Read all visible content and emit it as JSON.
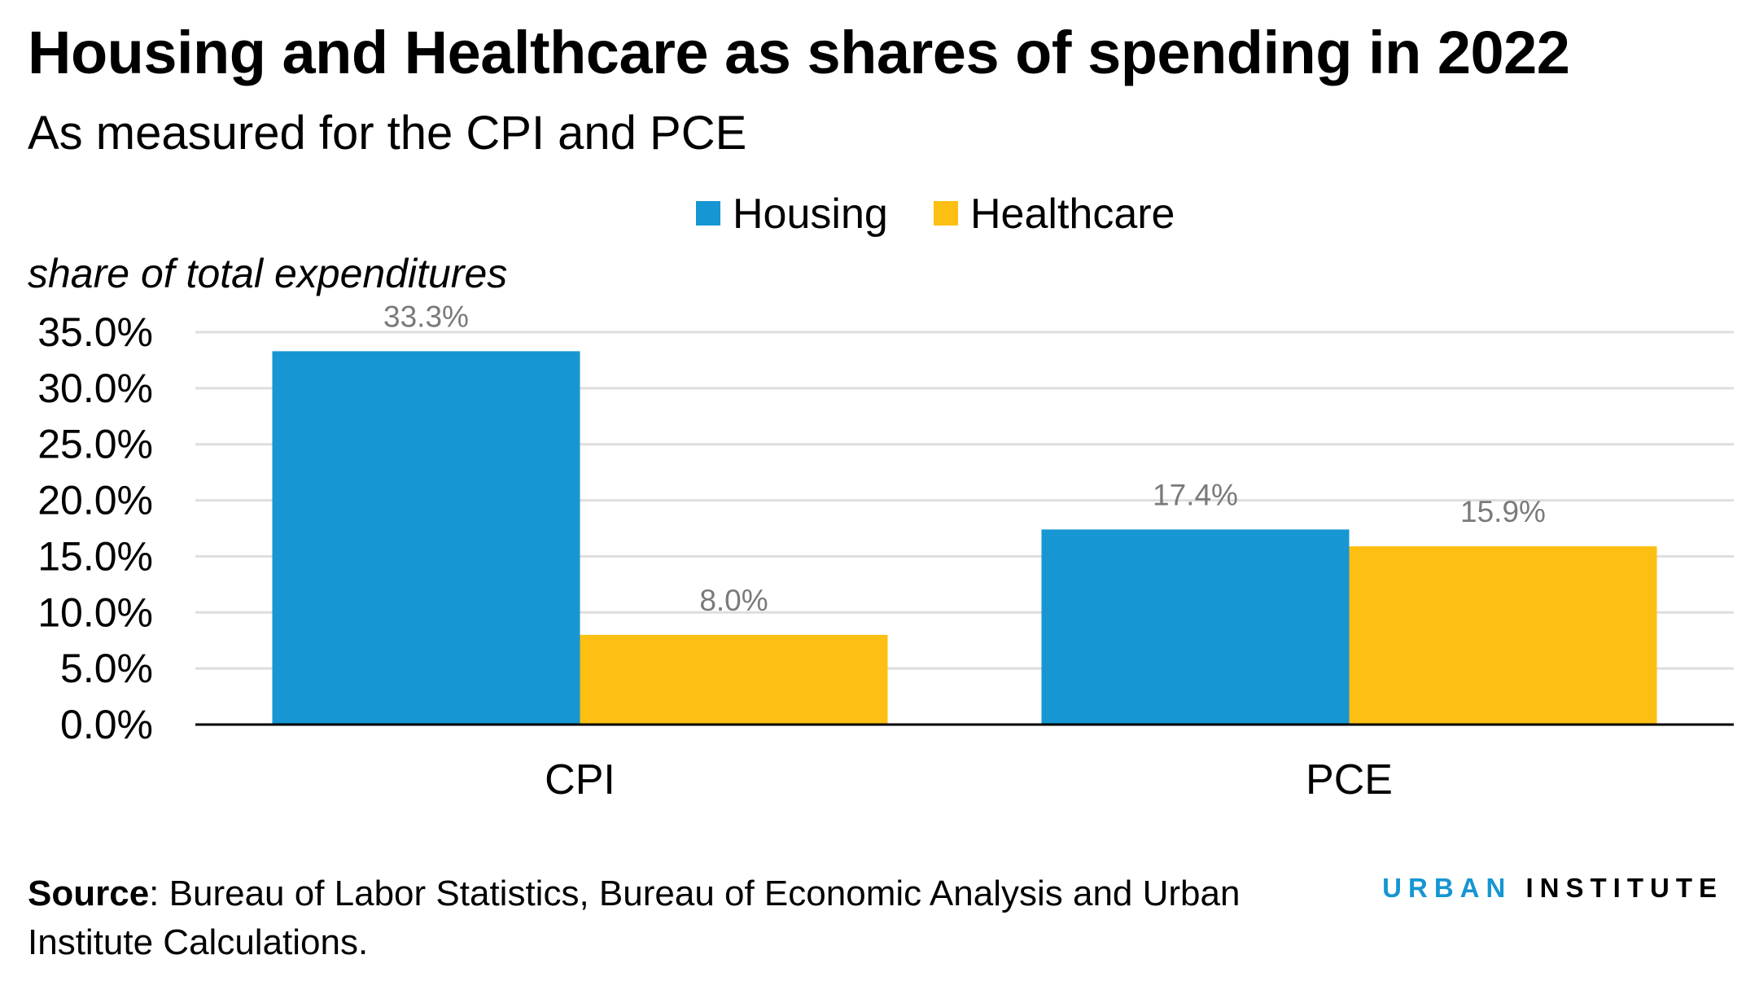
{
  "header": {
    "title": "Housing and Healthcare as shares of spending in 2022",
    "subtitle": "As measured for the CPI and PCE"
  },
  "chart_data": {
    "type": "bar",
    "categories": [
      "CPI",
      "PCE"
    ],
    "series": [
      {
        "name": "Housing",
        "color": "#1696d2",
        "values": [
          33.3,
          17.4
        ],
        "labels": [
          "33.3%",
          "17.4%"
        ]
      },
      {
        "name": "Healthcare",
        "color": "#fdbf11",
        "values": [
          8.0,
          15.9
        ],
        "labels": [
          "8.0%",
          "15.9%"
        ]
      }
    ],
    "ylabel": "share of total expenditures",
    "ylim": [
      0,
      35
    ],
    "yticks": [
      0,
      5,
      10,
      15,
      20,
      25,
      30,
      35
    ],
    "ytick_labels": [
      "0.0%",
      "5.0%",
      "10.0%",
      "15.0%",
      "20.0%",
      "25.0%",
      "30.0%",
      "35.0%"
    ],
    "grid": true,
    "legend_position": "top-center"
  },
  "footer": {
    "source_label": "Source",
    "source_text": ": Bureau of Labor Statistics, Bureau of Economic Analysis and Urban Institute Calculations.",
    "brand_part1": "URBAN",
    "brand_part2": " INSTITUTE"
  }
}
